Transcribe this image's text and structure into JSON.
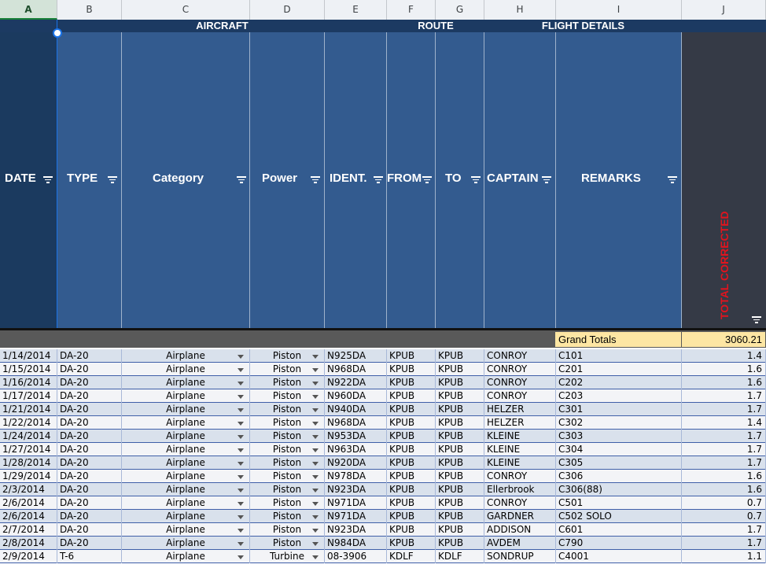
{
  "columns": [
    "A",
    "B",
    "C",
    "D",
    "E",
    "F",
    "G",
    "H",
    "I",
    "J"
  ],
  "groups": {
    "aircraft": "AIRCRAFT",
    "route": "ROUTE",
    "flight_details": "FLIGHT DETAILS"
  },
  "headers": {
    "date": "DATE",
    "type": "TYPE",
    "category": "Category",
    "power": "Power",
    "ident": "IDENT.",
    "from": "FROM",
    "to": "TO",
    "captain": "CAPTAIN",
    "remarks": "REMARKS",
    "total": "TOTAL CORRECTED"
  },
  "totals": {
    "label": "Grand Totals",
    "value": "3060.21"
  },
  "colors": {
    "header_blue": "#335b8f",
    "group_blue": "#1c3a62",
    "date_dark": "#1b3a5f",
    "total_col": "#353a46",
    "total_text": "#e0141e",
    "grand_bg": "#fde6a3"
  },
  "rows": [
    {
      "date": "1/14/2014",
      "type": "DA-20",
      "category": "Airplane",
      "power": "Piston",
      "ident": "N925DA",
      "from": "KPUB",
      "to": "KPUB",
      "captain": "CONROY",
      "remarks": "C101",
      "total": "1.4"
    },
    {
      "date": "1/15/2014",
      "type": "DA-20",
      "category": "Airplane",
      "power": "Piston",
      "ident": "N968DA",
      "from": "KPUB",
      "to": "KPUB",
      "captain": "CONROY",
      "remarks": "C201",
      "total": "1.6"
    },
    {
      "date": "1/16/2014",
      "type": "DA-20",
      "category": "Airplane",
      "power": "Piston",
      "ident": "N922DA",
      "from": "KPUB",
      "to": "KPUB",
      "captain": "CONROY",
      "remarks": "C202",
      "total": "1.6"
    },
    {
      "date": "1/17/2014",
      "type": "DA-20",
      "category": "Airplane",
      "power": "Piston",
      "ident": "N960DA",
      "from": "KPUB",
      "to": "KPUB",
      "captain": "CONROY",
      "remarks": "C203",
      "total": "1.7"
    },
    {
      "date": "1/21/2014",
      "type": "DA-20",
      "category": "Airplane",
      "power": "Piston",
      "ident": "N940DA",
      "from": "KPUB",
      "to": "KPUB",
      "captain": "HELZER",
      "remarks": "C301",
      "total": "1.7"
    },
    {
      "date": "1/22/2014",
      "type": "DA-20",
      "category": "Airplane",
      "power": "Piston",
      "ident": "N968DA",
      "from": "KPUB",
      "to": "KPUB",
      "captain": "HELZER",
      "remarks": "C302",
      "total": "1.4"
    },
    {
      "date": "1/24/2014",
      "type": "DA-20",
      "category": "Airplane",
      "power": "Piston",
      "ident": "N953DA",
      "from": "KPUB",
      "to": "KPUB",
      "captain": "KLEINE",
      "remarks": "C303",
      "total": "1.7"
    },
    {
      "date": "1/27/2014",
      "type": "DA-20",
      "category": "Airplane",
      "power": "Piston",
      "ident": "N963DA",
      "from": "KPUB",
      "to": "KPUB",
      "captain": "KLEINE",
      "remarks": "C304",
      "total": "1.7"
    },
    {
      "date": "1/28/2014",
      "type": "DA-20",
      "category": "Airplane",
      "power": "Piston",
      "ident": "N920DA",
      "from": "KPUB",
      "to": "KPUB",
      "captain": "KLEINE",
      "remarks": "C305",
      "total": "1.7"
    },
    {
      "date": "1/29/2014",
      "type": "DA-20",
      "category": "Airplane",
      "power": "Piston",
      "ident": "N978DA",
      "from": "KPUB",
      "to": "KPUB",
      "captain": "CONROY",
      "remarks": "C306",
      "total": "1.6"
    },
    {
      "date": "2/3/2014",
      "type": "DA-20",
      "category": "Airplane",
      "power": "Piston",
      "ident": "N923DA",
      "from": "KPUB",
      "to": "KPUB",
      "captain": "Ellerbrook",
      "remarks": "C306(88)",
      "total": "1.6"
    },
    {
      "date": "2/6/2014",
      "type": "DA-20",
      "category": "Airplane",
      "power": "Piston",
      "ident": "N971DA",
      "from": "KPUB",
      "to": "KPUB",
      "captain": "CONROY",
      "remarks": "C501",
      "total": "0.7"
    },
    {
      "date": "2/6/2014",
      "type": "DA-20",
      "category": "Airplane",
      "power": "Piston",
      "ident": "N971DA",
      "from": "KPUB",
      "to": "KPUB",
      "captain": "GARDNER",
      "remarks": "C502 SOLO",
      "total": "0.7"
    },
    {
      "date": "2/7/2014",
      "type": "DA-20",
      "category": "Airplane",
      "power": "Piston",
      "ident": "N923DA",
      "from": "KPUB",
      "to": "KPUB",
      "captain": "ADDISON",
      "remarks": "C601",
      "total": "1.7"
    },
    {
      "date": "2/8/2014",
      "type": "DA-20",
      "category": "Airplane",
      "power": "Piston",
      "ident": "N984DA",
      "from": "KPUB",
      "to": "KPUB",
      "captain": "AVDEM",
      "remarks": "C790",
      "total": "1.7"
    },
    {
      "date": "2/9/2014",
      "type": "T-6",
      "category": "Airplane",
      "power": "Turbine",
      "ident": "08-3906",
      "from": "KDLF",
      "to": "KDLF",
      "captain": "SONDRUP",
      "remarks": "C4001",
      "total": "1.1"
    }
  ]
}
